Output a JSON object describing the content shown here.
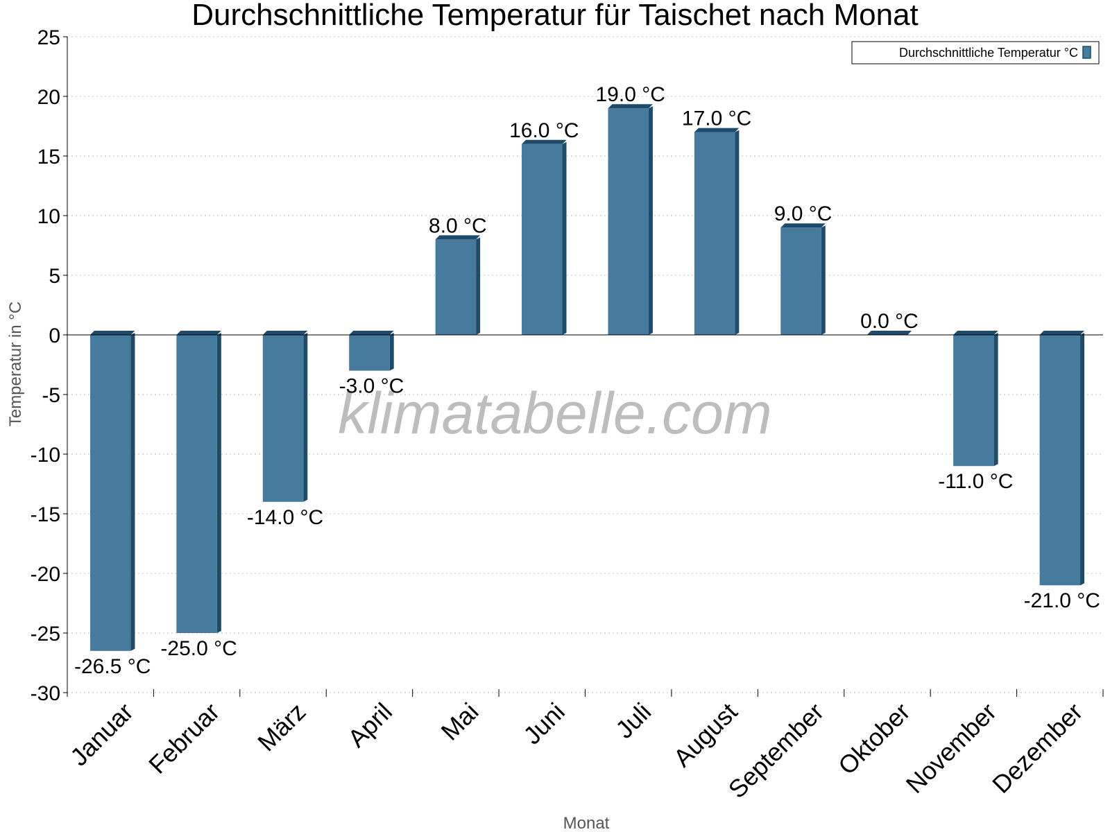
{
  "chart_data": {
    "type": "bar",
    "title": "Durchschnittliche Temperatur für Taischet nach Monat",
    "xlabel": "Monat",
    "ylabel": "Temperatur in °C",
    "categories": [
      "Januar",
      "Februar",
      "März",
      "April",
      "Mai",
      "Juni",
      "Juli",
      "August",
      "September",
      "Oktober",
      "November",
      "Dezember"
    ],
    "series": [
      {
        "name": "Durchschnittliche Temperatur °C",
        "values": [
          -26.5,
          -25.0,
          -14.0,
          -3.0,
          8.0,
          16.0,
          19.0,
          17.0,
          9.0,
          0.0,
          -11.0,
          -21.0
        ],
        "labels": [
          "-26.5 °C",
          "-25.0 °C",
          "-14.0 °C",
          "-3.0 °C",
          "8.0 °C",
          "16.0 °C",
          "19.0 °C",
          "17.0 °C",
          "9.0 °C",
          "0.0 °C",
          "-11.0 °C",
          "-21.0 °C"
        ]
      }
    ],
    "ylim": [
      -30,
      25
    ],
    "yticks": [
      "25",
      "20",
      "15",
      "10",
      "5",
      "0",
      "-5",
      "-10",
      "-15",
      "-20",
      "-25",
      "-30"
    ],
    "grid": true,
    "legend_position": "top-right",
    "colors": {
      "bar": "#467b9d",
      "bar_side": "#1f4b6b",
      "grid": "#bfbfbf"
    }
  },
  "watermark": "klimatabelle.com"
}
